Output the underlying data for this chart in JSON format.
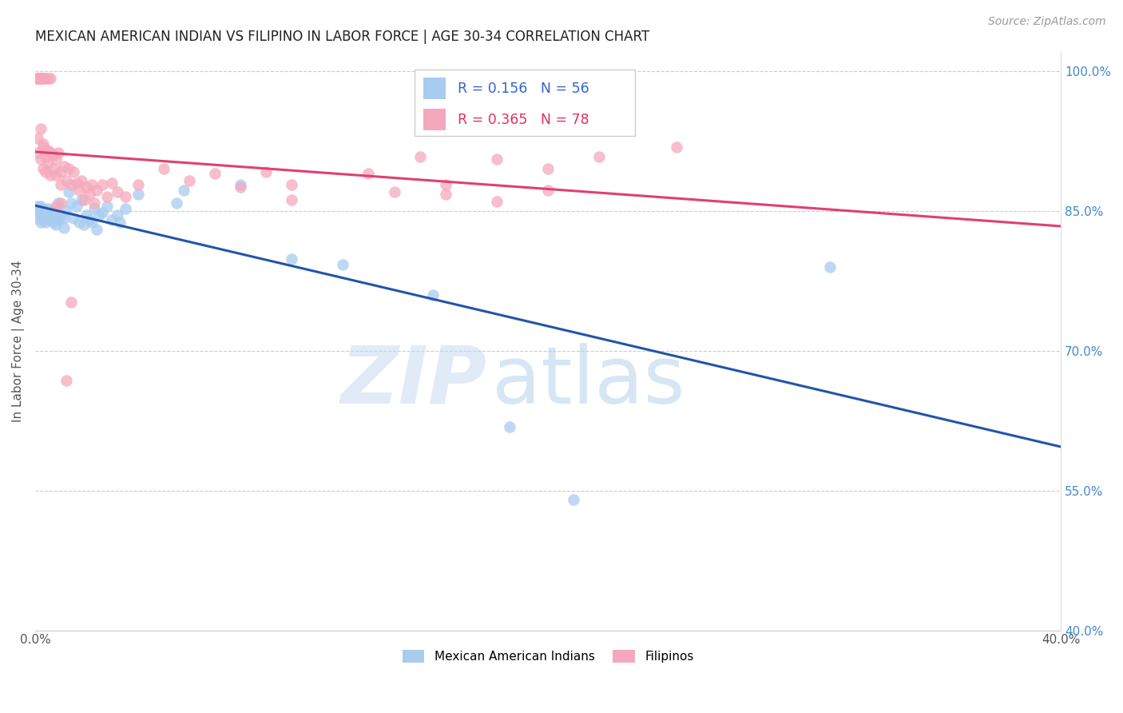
{
  "title": "MEXICAN AMERICAN INDIAN VS FILIPINO IN LABOR FORCE | AGE 30-34 CORRELATION CHART",
  "source": "Source: ZipAtlas.com",
  "ylabel": "In Labor Force | Age 30-34",
  "xlim": [
    0.0,
    0.4
  ],
  "ylim": [
    0.4,
    1.02
  ],
  "xtick_positions": [
    0.0,
    0.05,
    0.1,
    0.15,
    0.2,
    0.25,
    0.3,
    0.35,
    0.4
  ],
  "xtick_labels": [
    "0.0%",
    "",
    "",
    "",
    "",
    "",
    "",
    "",
    "40.0%"
  ],
  "yticks": [
    0.4,
    0.55,
    0.7,
    0.85,
    1.0
  ],
  "ytick_labels_right": [
    "40.0%",
    "55.0%",
    "70.0%",
    "85.0%",
    "100.0%"
  ],
  "legend_blue_label": "Mexican American Indians",
  "legend_pink_label": "Filipinos",
  "R_blue": 0.156,
  "N_blue": 56,
  "R_pink": 0.365,
  "N_pink": 78,
  "blue_color": "#A8CCF0",
  "pink_color": "#F5A8BC",
  "trend_blue_color": "#2255AA",
  "trend_pink_color": "#E04070",
  "watermark_text": "ZIP",
  "watermark_text2": "atlas",
  "title_fontsize": 12,
  "blue_scatter": [
    [
      0.001,
      0.855
    ],
    [
      0.001,
      0.848
    ],
    [
      0.001,
      0.842
    ],
    [
      0.002,
      0.85
    ],
    [
      0.002,
      0.838
    ],
    [
      0.002,
      0.845
    ],
    [
      0.002,
      0.855
    ],
    [
      0.003,
      0.84
    ],
    [
      0.003,
      0.852
    ],
    [
      0.003,
      0.845
    ],
    [
      0.004,
      0.848
    ],
    [
      0.004,
      0.838
    ],
    [
      0.005,
      0.852
    ],
    [
      0.005,
      0.842
    ],
    [
      0.005,
      0.848
    ],
    [
      0.006,
      0.85
    ],
    [
      0.006,
      0.84
    ],
    [
      0.007,
      0.838
    ],
    [
      0.007,
      0.85
    ],
    [
      0.008,
      0.835
    ],
    [
      0.008,
      0.842
    ],
    [
      0.009,
      0.84
    ],
    [
      0.009,
      0.858
    ],
    [
      0.01,
      0.845
    ],
    [
      0.011,
      0.842
    ],
    [
      0.011,
      0.832
    ],
    [
      0.012,
      0.85
    ],
    [
      0.013,
      0.87
    ],
    [
      0.014,
      0.858
    ],
    [
      0.015,
      0.842
    ],
    [
      0.016,
      0.855
    ],
    [
      0.017,
      0.838
    ],
    [
      0.018,
      0.862
    ],
    [
      0.019,
      0.835
    ],
    [
      0.02,
      0.845
    ],
    [
      0.021,
      0.84
    ],
    [
      0.022,
      0.838
    ],
    [
      0.023,
      0.852
    ],
    [
      0.024,
      0.83
    ],
    [
      0.025,
      0.845
    ],
    [
      0.026,
      0.848
    ],
    [
      0.028,
      0.855
    ],
    [
      0.03,
      0.84
    ],
    [
      0.032,
      0.845
    ],
    [
      0.033,
      0.838
    ],
    [
      0.035,
      0.852
    ],
    [
      0.04,
      0.868
    ],
    [
      0.055,
      0.858
    ],
    [
      0.058,
      0.872
    ],
    [
      0.08,
      0.878
    ],
    [
      0.1,
      0.798
    ],
    [
      0.12,
      0.792
    ],
    [
      0.155,
      0.76
    ],
    [
      0.185,
      0.618
    ],
    [
      0.21,
      0.54
    ],
    [
      0.31,
      0.79
    ]
  ],
  "pink_scatter": [
    [
      0.001,
      0.992
    ],
    [
      0.001,
      0.992
    ],
    [
      0.001,
      0.992
    ],
    [
      0.001,
      0.992
    ],
    [
      0.001,
      0.992
    ],
    [
      0.002,
      0.992
    ],
    [
      0.002,
      0.992
    ],
    [
      0.002,
      0.992
    ],
    [
      0.002,
      0.992
    ],
    [
      0.002,
      0.992
    ],
    [
      0.003,
      0.992
    ],
    [
      0.003,
      0.992
    ],
    [
      0.003,
      0.992
    ],
    [
      0.004,
      0.992
    ],
    [
      0.005,
      0.992
    ],
    [
      0.006,
      0.992
    ],
    [
      0.001,
      0.928
    ],
    [
      0.001,
      0.912
    ],
    [
      0.002,
      0.938
    ],
    [
      0.002,
      0.905
    ],
    [
      0.003,
      0.918
    ],
    [
      0.003,
      0.895
    ],
    [
      0.003,
      0.922
    ],
    [
      0.004,
      0.908
    ],
    [
      0.004,
      0.892
    ],
    [
      0.005,
      0.915
    ],
    [
      0.005,
      0.9
    ],
    [
      0.006,
      0.912
    ],
    [
      0.006,
      0.888
    ],
    [
      0.007,
      0.91
    ],
    [
      0.007,
      0.895
    ],
    [
      0.008,
      0.905
    ],
    [
      0.008,
      0.888
    ],
    [
      0.009,
      0.912
    ],
    [
      0.01,
      0.892
    ],
    [
      0.01,
      0.878
    ],
    [
      0.011,
      0.898
    ],
    [
      0.012,
      0.882
    ],
    [
      0.013,
      0.895
    ],
    [
      0.014,
      0.878
    ],
    [
      0.015,
      0.892
    ],
    [
      0.016,
      0.88
    ],
    [
      0.017,
      0.872
    ],
    [
      0.018,
      0.882
    ],
    [
      0.019,
      0.862
    ],
    [
      0.02,
      0.875
    ],
    [
      0.021,
      0.868
    ],
    [
      0.022,
      0.878
    ],
    [
      0.023,
      0.858
    ],
    [
      0.024,
      0.872
    ],
    [
      0.026,
      0.878
    ],
    [
      0.028,
      0.865
    ],
    [
      0.03,
      0.88
    ],
    [
      0.032,
      0.87
    ],
    [
      0.035,
      0.865
    ],
    [
      0.04,
      0.878
    ],
    [
      0.05,
      0.895
    ],
    [
      0.06,
      0.882
    ],
    [
      0.07,
      0.89
    ],
    [
      0.08,
      0.875
    ],
    [
      0.09,
      0.892
    ],
    [
      0.1,
      0.878
    ],
    [
      0.13,
      0.89
    ],
    [
      0.15,
      0.908
    ],
    [
      0.16,
      0.878
    ],
    [
      0.18,
      0.905
    ],
    [
      0.2,
      0.895
    ],
    [
      0.22,
      0.908
    ],
    [
      0.012,
      0.668
    ],
    [
      0.014,
      0.752
    ],
    [
      0.1,
      0.862
    ],
    [
      0.14,
      0.87
    ],
    [
      0.16,
      0.868
    ],
    [
      0.18,
      0.86
    ],
    [
      0.2,
      0.872
    ],
    [
      0.25,
      0.918
    ],
    [
      0.008,
      0.855
    ],
    [
      0.01,
      0.858
    ]
  ]
}
